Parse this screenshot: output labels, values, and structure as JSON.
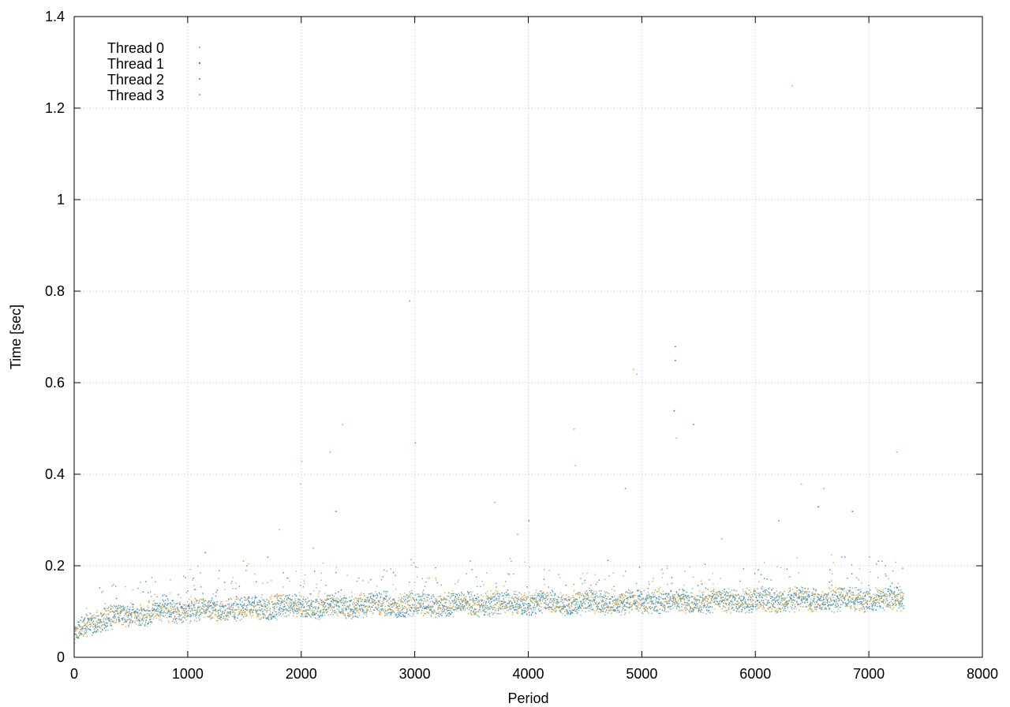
{
  "chart_data": {
    "type": "scatter",
    "title": "",
    "xlabel": "Period",
    "ylabel": "Time [sec]",
    "xlim": [
      0,
      8000
    ],
    "ylim": [
      0,
      1.4
    ],
    "xticks": [
      "0",
      "1000",
      "2000",
      "3000",
      "4000",
      "5000",
      "6000",
      "7000",
      "8000"
    ],
    "yticks": [
      "0",
      "0.2",
      "0.4",
      "0.6",
      "0.8",
      "1",
      "1.2",
      "1.4"
    ],
    "grid": true,
    "legend_position": "top-left",
    "series": [
      {
        "name": "Thread 0",
        "color": "#9ab0b8",
        "x": [
          0,
          100,
          200,
          400,
          600,
          800,
          1000,
          1200,
          1500,
          1800,
          2000,
          2200,
          2500,
          3000,
          3500,
          4000,
          4500,
          5000,
          5500,
          6000,
          6500,
          7000,
          7300
        ],
        "y": [
          0.048,
          0.07,
          0.08,
          0.09,
          0.095,
          0.1,
          0.103,
          0.105,
          0.108,
          0.11,
          0.11,
          0.112,
          0.113,
          0.115,
          0.117,
          0.119,
          0.12,
          0.122,
          0.123,
          0.125,
          0.126,
          0.127,
          0.128
        ],
        "outliers": [
          [
            4950,
            0.62
          ],
          [
            5300,
            0.48
          ],
          [
            6600,
            0.37
          ],
          [
            2100,
            0.24
          ],
          [
            3900,
            0.27
          ],
          [
            5700,
            0.26
          ],
          [
            7000,
            0.22
          ]
        ]
      },
      {
        "name": "Thread 1",
        "color": "#2e8bc0",
        "x": [
          0,
          100,
          200,
          400,
          600,
          800,
          1000,
          1200,
          1500,
          1800,
          2000,
          2200,
          2500,
          3000,
          3500,
          4000,
          4500,
          5000,
          5500,
          6000,
          6500,
          7000,
          7300
        ],
        "y": [
          0.05,
          0.072,
          0.082,
          0.092,
          0.097,
          0.102,
          0.105,
          0.106,
          0.109,
          0.111,
          0.112,
          0.113,
          0.114,
          0.116,
          0.118,
          0.12,
          0.121,
          0.123,
          0.124,
          0.126,
          0.127,
          0.128,
          0.129
        ],
        "outliers": [
          [
            5290,
            0.68
          ],
          [
            5290,
            0.65
          ],
          [
            5280,
            0.54
          ],
          [
            5450,
            0.51
          ],
          [
            6550,
            0.33
          ],
          [
            4000,
            0.3
          ],
          [
            1150,
            0.23
          ],
          [
            2300,
            0.32
          ],
          [
            6850,
            0.32
          ]
        ]
      },
      {
        "name": "Thread 2",
        "color": "#5fa8a0",
        "x": [
          0,
          100,
          200,
          400,
          600,
          800,
          1000,
          1200,
          1500,
          1800,
          2000,
          2200,
          2500,
          3000,
          3500,
          4000,
          4500,
          5000,
          5500,
          6000,
          6500,
          7000,
          7300
        ],
        "y": [
          0.049,
          0.071,
          0.081,
          0.091,
          0.096,
          0.101,
          0.104,
          0.105,
          0.108,
          0.11,
          0.111,
          0.112,
          0.113,
          0.115,
          0.117,
          0.119,
          0.12,
          0.122,
          0.123,
          0.125,
          0.126,
          0.127,
          0.128
        ],
        "outliers": [
          [
            3000,
            0.47
          ],
          [
            4850,
            0.37
          ],
          [
            6200,
            0.3
          ],
          [
            1700,
            0.22
          ],
          [
            2950,
            0.78
          ]
        ]
      },
      {
        "name": "Thread 3",
        "color": "#e6a93a",
        "x": [
          0,
          100,
          200,
          400,
          600,
          800,
          1000,
          1200,
          1500,
          1800,
          2000,
          2200,
          2500,
          3000,
          3500,
          4000,
          4500,
          5000,
          5500,
          6000,
          6500,
          7000,
          7300
        ],
        "y": [
          0.05,
          0.073,
          0.083,
          0.093,
          0.098,
          0.103,
          0.106,
          0.107,
          0.11,
          0.112,
          0.113,
          0.114,
          0.115,
          0.117,
          0.119,
          0.121,
          0.122,
          0.124,
          0.125,
          0.127,
          0.128,
          0.129,
          0.13
        ],
        "outliers": [
          [
            6320,
            1.25
          ],
          [
            4920,
            0.63
          ],
          [
            4400,
            0.5
          ],
          [
            2360,
            0.51
          ],
          [
            2250,
            0.45
          ],
          [
            4410,
            0.42
          ],
          [
            7240,
            0.45
          ],
          [
            2000,
            0.43
          ],
          [
            6400,
            0.38
          ],
          [
            1990,
            0.38
          ],
          [
            3700,
            0.34
          ],
          [
            1800,
            0.28
          ]
        ]
      }
    ]
  }
}
